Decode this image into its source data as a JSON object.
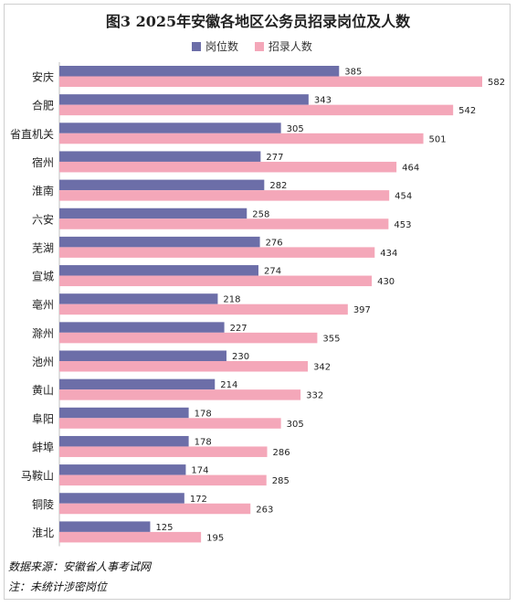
{
  "chart_data": {
    "type": "bar",
    "orientation": "horizontal",
    "title": "图3 2025年安徽各地区公务员招录岗位及人数",
    "categories": [
      "安庆",
      "合肥",
      "省直机关",
      "宿州",
      "淮南",
      "六安",
      "芜湖",
      "宣城",
      "亳州",
      "滁州",
      "池州",
      "黄山",
      "阜阳",
      "蚌埠",
      "马鞍山",
      "铜陵",
      "淮北"
    ],
    "series": [
      {
        "name": "岗位数",
        "color": "#6c6ea8",
        "values": [
          385,
          343,
          305,
          277,
          282,
          258,
          276,
          274,
          218,
          227,
          230,
          214,
          178,
          178,
          174,
          172,
          125
        ]
      },
      {
        "name": "招录人数",
        "color": "#f4a7b9",
        "values": [
          582,
          542,
          501,
          464,
          454,
          453,
          434,
          430,
          397,
          355,
          342,
          332,
          305,
          286,
          285,
          263,
          195
        ]
      }
    ],
    "xlim": [
      0,
      600
    ],
    "grid": false,
    "legend_position": "top"
  },
  "footer": {
    "source": "数据来源：安徽省人事考试网",
    "note": "注：未统计涉密岗位"
  }
}
